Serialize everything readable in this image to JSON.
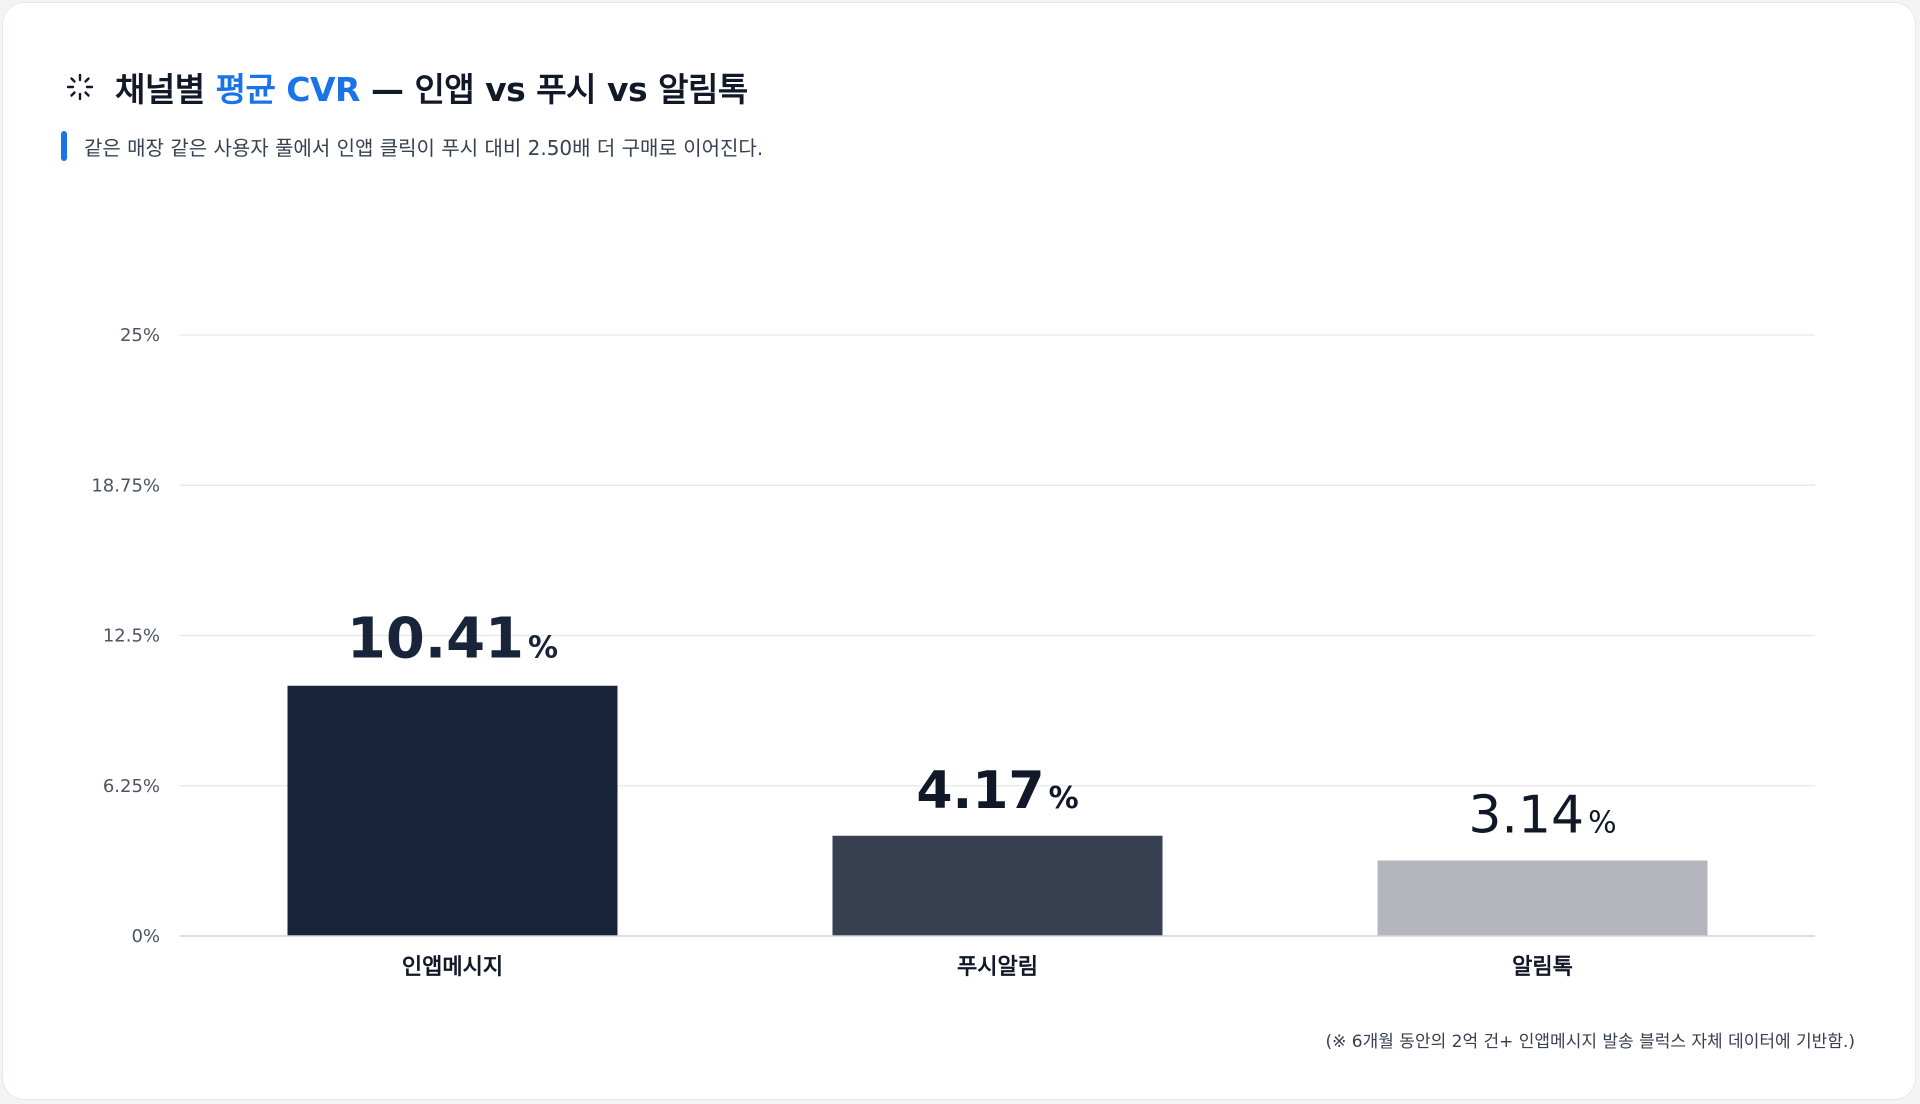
{
  "header": {
    "title_prefix": "채널별 ",
    "title_accent": "평균 CVR",
    "title_suffix": " — 인앱 vs 푸시 vs 알림톡",
    "subtitle": "같은 매장 같은 사용자 풀에서 인앱 클릭이 푸시 대비 2.50배 더 구매로 이어진다.",
    "icon": "loading-spinner-icon"
  },
  "footnote": "(※ 6개월 동안의 2억 건+ 인앱메시지 발송 블럭스 자체 데이터에 기반함.)",
  "colors": {
    "accent": "#1a73e8",
    "bar_inapp": "#18243a",
    "bar_push": "#374151",
    "bar_alimtalk": "#b5b6bd",
    "grid": "#e5e7eb",
    "tick_text": "#4b5563"
  },
  "chart_data": {
    "type": "bar",
    "categories": [
      "인앱메시지",
      "푸시알림",
      "알림톡"
    ],
    "values": [
      10.41,
      4.17,
      3.14
    ],
    "value_labels": [
      "10.41",
      "4.17",
      "3.14"
    ],
    "value_unit": "%",
    "bar_colors": [
      "#18243a",
      "#374151",
      "#b5b6bd"
    ],
    "yticks": [
      "0%",
      "6.25%",
      "12.5%",
      "18.75%",
      "25%"
    ],
    "ytick_values": [
      0,
      6.25,
      12.5,
      18.75,
      25
    ],
    "ylim": [
      0,
      25
    ],
    "grid": true,
    "xlabel": "",
    "ylabel": ""
  }
}
